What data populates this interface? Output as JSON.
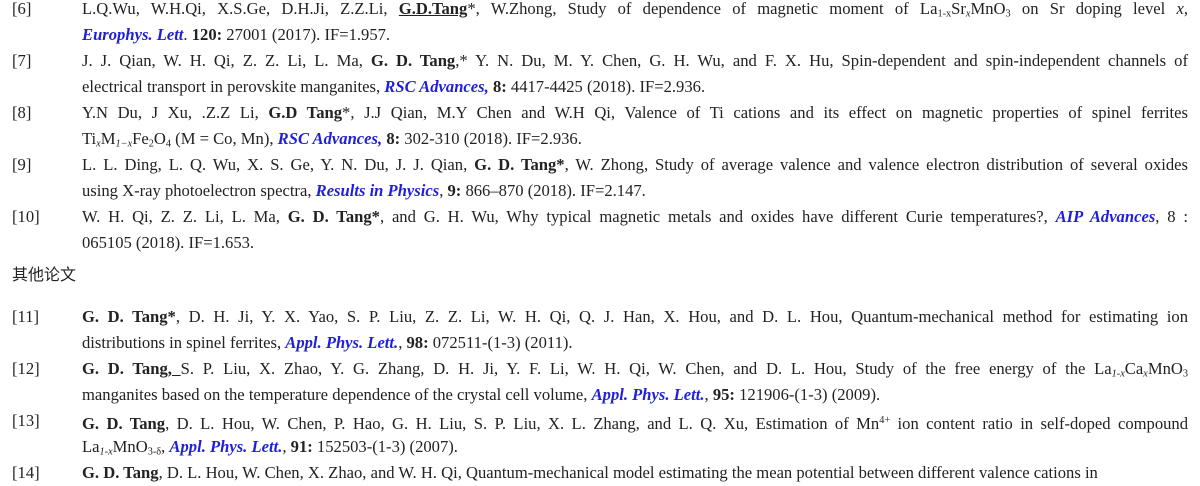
{
  "section_heading": "其他论文",
  "colors": {
    "journal_link": "#1f1fd6",
    "text": "#222222"
  },
  "entries_before": [
    {
      "num": "[6]",
      "lines": [
        [
          {
            "t": "L.Q.Wu, W.H.Qi, X.S.Ge, D.H.Ji, Z.Z.Li, "
          },
          {
            "t": "G.D.Tang",
            "s": "bu"
          },
          {
            "t": "*, W.Zhong, Study of dependence of magnetic moment of La"
          },
          {
            "t": "1-x",
            "s": "sub"
          },
          {
            "t": "Sr"
          },
          {
            "t": "x",
            "s": "subi"
          },
          {
            "t": "MnO"
          },
          {
            "t": "3",
            "s": "sub"
          },
          {
            "t": " on Sr doping level "
          },
          {
            "t": "x",
            "s": "i"
          },
          {
            "t": ","
          }
        ],
        [
          {
            "t": "Europhys. Lett",
            "s": "j"
          },
          {
            "t": ". "
          },
          {
            "t": "120:",
            "s": "b"
          },
          {
            "t": " 27001 (2017). IF=1.957."
          }
        ]
      ]
    },
    {
      "num": "[7]",
      "lines": [
        [
          {
            "t": "J. J. Qian, W. H. Qi, Z. Z. Li, L. Ma, "
          },
          {
            "t": "G. D. Tang",
            "s": "b"
          },
          {
            "t": ",* Y. N. Du, M. Y. Chen, G. H. Wu, and F. X. Hu, Spin-dependent and spin-independent channels of"
          }
        ],
        [
          {
            "t": "electrical transport in perovskite manganites, "
          },
          {
            "t": "RSC Advances,",
            "s": "j"
          },
          {
            "t": " "
          },
          {
            "t": "8:",
            "s": "b"
          },
          {
            "t": " 4417-4425 (2018). IF=2.936."
          }
        ]
      ]
    },
    {
      "num": "[8]",
      "lines": [
        [
          {
            "t": "Y.N Du, J Xu, .Z.Z Li, "
          },
          {
            "t": "G.D Tang",
            "s": "b"
          },
          {
            "t": "*, J.J Qian, M.Y Chen and W.H Qi, Valence of Ti cations and its effect on magnetic properties of spinel ferrites"
          }
        ],
        [
          {
            "t": "Ti"
          },
          {
            "t": "x",
            "s": "subi"
          },
          {
            "t": "M"
          },
          {
            "t": "1−x",
            "s": "subi"
          },
          {
            "t": "Fe"
          },
          {
            "t": "2",
            "s": "sub"
          },
          {
            "t": "O"
          },
          {
            "t": "4",
            "s": "sub"
          },
          {
            "t": " (M = Co, Mn), "
          },
          {
            "t": "RSC Advances,",
            "s": "j"
          },
          {
            "t": " "
          },
          {
            "t": "8:",
            "s": "b"
          },
          {
            "t": " 302-310 (2018). IF=2.936."
          }
        ]
      ]
    },
    {
      "num": "[9]",
      "lines": [
        [
          {
            "t": "L. L. Ding, L. Q. Wu, X. S. Ge, Y. N. Du, J. J. Qian, "
          },
          {
            "t": "G. D. Tang*",
            "s": "b"
          },
          {
            "t": ", W. Zhong, Study of average valence and valence electron distribution of several oxides"
          }
        ],
        [
          {
            "t": "using X-ray photoelectron spectra, "
          },
          {
            "t": "Results in Physics",
            "s": "j"
          },
          {
            "t": ", "
          },
          {
            "t": "9:",
            "s": "b"
          },
          {
            "t": " 866–870 (2018). IF=2.147."
          }
        ]
      ]
    },
    {
      "num": "[10]",
      "lines": [
        [
          {
            "t": "W. H. Qi, Z. Z. Li, L. Ma, "
          },
          {
            "t": "G. D. Tang*",
            "s": "b"
          },
          {
            "t": ", and G. H. Wu, Why typical magnetic metals and oxides have different Curie temperatures?, "
          },
          {
            "t": "AIP Advances",
            "s": "j"
          },
          {
            "t": ", 8 :"
          }
        ],
        [
          {
            "t": "065105 (2018). IF=1.653."
          }
        ]
      ]
    }
  ],
  "entries_after": [
    {
      "num": "[11]",
      "lines": [
        [
          {
            "t": "G. D. Tang*",
            "s": "b"
          },
          {
            "t": ", D. H. Ji, Y. X. Yao, S. P. Liu, Z. Z. Li, W. H. Qi, Q. J. Han, X. Hou, and D. L. Hou, Quantum-mechanical method for estimating ion"
          }
        ],
        [
          {
            "t": "distributions in spinel ferrites, "
          },
          {
            "t": "Appl. Phys. Lett.",
            "s": "j"
          },
          {
            "t": ", "
          },
          {
            "t": "98:",
            "s": "b"
          },
          {
            "t": " 072511-(1-3) (2011)."
          }
        ]
      ]
    },
    {
      "num": "[12]",
      "lines": [
        [
          {
            "t": "G. D. Tang",
            "s": "b"
          },
          {
            "t": ", ",
            "s": "bu"
          },
          {
            "t": "S. P. Liu, X. Zhao, Y. G. Zhang, D. H. Ji, Y. F. Li, W. H. Qi, W. Chen, and D. L. Hou, Study of the free energy of the La"
          },
          {
            "t": "1-x",
            "s": "subi"
          },
          {
            "t": "Ca"
          },
          {
            "t": "x",
            "s": "subi"
          },
          {
            "t": "MnO"
          },
          {
            "t": "3",
            "s": "sub"
          }
        ],
        [
          {
            "t": "manganites based on the temperature dependence of the crystal cell volume, "
          },
          {
            "t": "Appl. Phys. Lett.",
            "s": "j"
          },
          {
            "t": ", "
          },
          {
            "t": "95:",
            "s": "b"
          },
          {
            "t": " 121906-(1-3) (2009)."
          }
        ]
      ]
    },
    {
      "num": "[13]",
      "lines": [
        [
          {
            "t": "G. D. Tang",
            "s": "b"
          },
          {
            "t": ", D. L. Hou, W. Chen, P. Hao, G. H. Liu, S. P. Liu, X. L. Zhang, and L. Q. Xu, Estimation of Mn"
          },
          {
            "t": "4+",
            "s": "sup"
          },
          {
            "t": " ion content ratio in self-doped compound"
          }
        ],
        [
          {
            "t": "La"
          },
          {
            "t": "1-x",
            "s": "subi"
          },
          {
            "t": "MnO"
          },
          {
            "t": "3-δ",
            "s": "sub"
          },
          {
            "t": ", "
          },
          {
            "t": "Appl. Phys. Lett.",
            "s": "j"
          },
          {
            "t": ", "
          },
          {
            "t": "91:",
            "s": "b"
          },
          {
            "t": " 152503-(1-3) (2007)."
          }
        ]
      ]
    },
    {
      "num": "[14]",
      "lines": [
        [
          {
            "t": "G. D. Tang",
            "s": "b"
          },
          {
            "t": ", D. L. Hou, W. Chen, X. Zhao, and W. H. Qi, Quantum-mechanical model estimating the mean potential between different valence cations in"
          }
        ]
      ]
    }
  ]
}
